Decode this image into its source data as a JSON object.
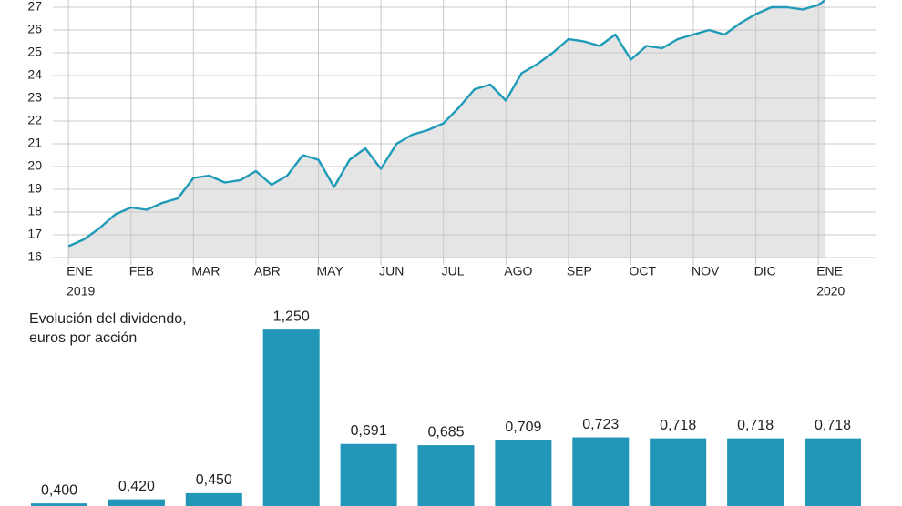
{
  "chart_data": [
    {
      "type": "line",
      "x": [
        0,
        0.25,
        0.5,
        0.75,
        1,
        1.25,
        1.5,
        1.75,
        2,
        2.25,
        2.5,
        2.75,
        3,
        3.25,
        3.5,
        3.75,
        4,
        4.25,
        4.5,
        4.75,
        5,
        5.25,
        5.5,
        5.75,
        6,
        6.25,
        6.5,
        6.75,
        7,
        7.25,
        7.5,
        7.75,
        8,
        8.25,
        8.5,
        8.75,
        9,
        9.25,
        9.5,
        9.75,
        10,
        10.25,
        10.5,
        10.75,
        11,
        11.25,
        11.5,
        11.75,
        12,
        12.1
      ],
      "series": [
        {
          "color": "#1e9bb8",
          "values": [
            16.5,
            16.8,
            17.3,
            17.9,
            18.2,
            18.1,
            18.4,
            18.6,
            19.5,
            19.6,
            19.3,
            19.4,
            19.8,
            19.2,
            19.6,
            20.5,
            20.3,
            19.1,
            20.3,
            20.8,
            19.9,
            21.0,
            21.4,
            21.6,
            21.9,
            22.6,
            23.4,
            23.6,
            22.9,
            24.1,
            24.5,
            25.0,
            25.6,
            25.5,
            25.3,
            25.8,
            24.7,
            25.3,
            25.2,
            25.6,
            25.8,
            26.0,
            25.8,
            26.3,
            26.7,
            27.0,
            27.0,
            26.9,
            27.1,
            27.3
          ]
        }
      ],
      "fill": "#e5e5e5",
      "xlim": [
        -0.25,
        12.93
      ],
      "ylim": [
        16,
        27.32
      ],
      "yticks": [
        16,
        17,
        18,
        19,
        20,
        21,
        22,
        23,
        24,
        25,
        26,
        27
      ],
      "xticks": [
        {
          "value": 0,
          "label": "ENE"
        },
        {
          "value": 1,
          "label": "FEB"
        },
        {
          "value": 2,
          "label": "MAR"
        },
        {
          "value": 3,
          "label": "ABR"
        },
        {
          "value": 4,
          "label": "MAY"
        },
        {
          "value": 5,
          "label": "JUN"
        },
        {
          "value": 6,
          "label": "JUL"
        },
        {
          "value": 7,
          "label": "AGO"
        },
        {
          "value": 8,
          "label": "SEP"
        },
        {
          "value": 9,
          "label": "OCT"
        },
        {
          "value": 10,
          "label": "NOV"
        },
        {
          "value": 11,
          "label": "DIC"
        },
        {
          "value": 12,
          "label": "ENE"
        }
      ],
      "x_year_labels": [
        {
          "value": 0,
          "label": "2019"
        },
        {
          "value": 12,
          "label": "2020"
        }
      ],
      "grid": true
    },
    {
      "type": "bar",
      "title": "Evolución del dividendo, euros por acción",
      "values": [
        0.4,
        0.42,
        0.45,
        1.25,
        0.691,
        0.685,
        0.709,
        0.723,
        0.718,
        0.718,
        0.718
      ],
      "value_labels": [
        "0,400",
        "0,420",
        "0,450",
        "1,250",
        "0,691",
        "0,685",
        "0,709",
        "0,723",
        "0,718",
        "0,718",
        "0,718"
      ],
      "color": "#2196b6"
    }
  ]
}
